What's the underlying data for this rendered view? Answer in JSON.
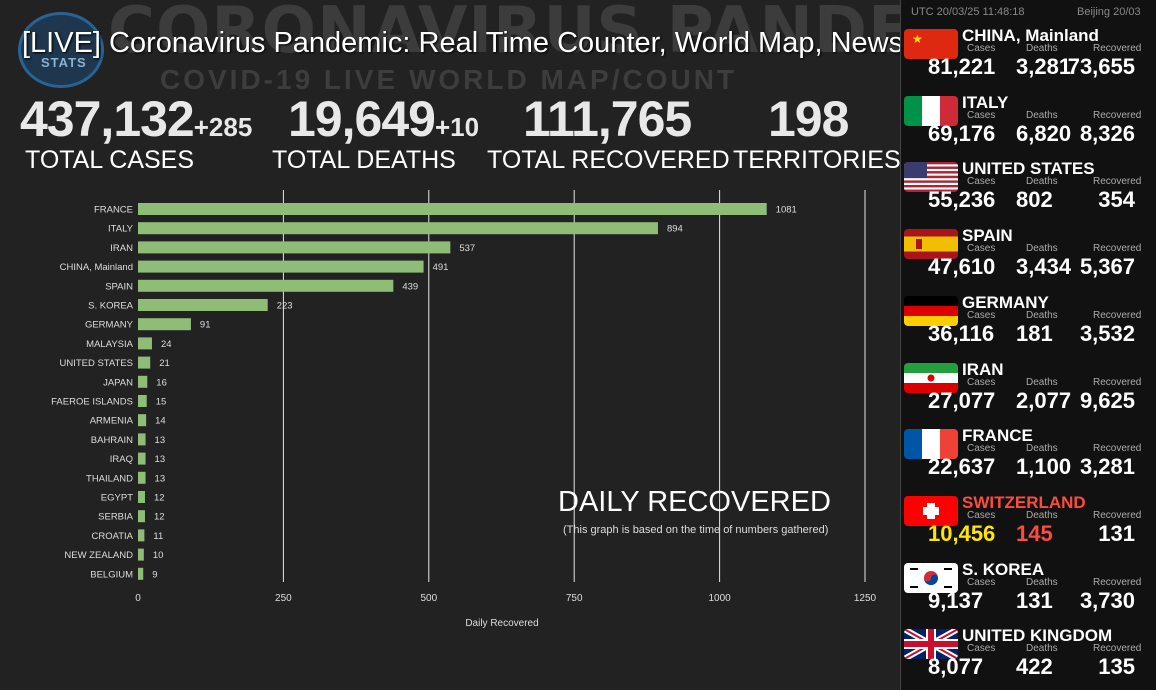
{
  "video_title": "[LIVE] Coronavirus Pandemic: Real Time Counter, World Map, News",
  "background_title": "CORONAVIRUS PANDEMIC",
  "background_subtitle": "COVID-19 LIVE WORLD MAP/COUNT",
  "logo_text": "STATS",
  "stats": {
    "cases": {
      "value": "437,132",
      "delta": "+285",
      "label": "TOTAL CASES"
    },
    "deaths": {
      "value": "19,649",
      "delta": "+10",
      "label": "TOTAL DEATHS"
    },
    "recovered": {
      "value": "111,765",
      "label": "TOTAL RECOVERED"
    },
    "territories": {
      "value": "198",
      "label": "TERRITORIES"
    }
  },
  "daily": {
    "title": "DAILY RECOVERED",
    "note": "(This graph is based on the time of numbers gathered)"
  },
  "chart_data": {
    "type": "bar",
    "orientation": "horizontal",
    "categories": [
      "FRANCE",
      "ITALY",
      "IRAN",
      "CHINA, Mainland",
      "SPAIN",
      "S. KOREA",
      "GERMANY",
      "MALAYSIA",
      "UNITED STATES",
      "JAPAN",
      "FAEROE ISLANDS",
      "ARMENIA",
      "BAHRAIN",
      "IRAQ",
      "THAILAND",
      "EGYPT",
      "SERBIA",
      "CROATIA",
      "NEW ZEALAND",
      "BELGIUM"
    ],
    "values": [
      1081,
      894,
      537,
      491,
      439,
      223,
      91,
      24,
      21,
      16,
      15,
      14,
      13,
      13,
      13,
      12,
      12,
      11,
      10,
      9
    ],
    "xlabel": "Daily Recovered",
    "ylabel": "",
    "xlim": [
      0,
      1250
    ],
    "xticks": [
      0,
      250,
      500,
      750,
      1000,
      1250
    ],
    "grid": true,
    "bar_color": "#8fbd78"
  },
  "panel": {
    "clock_utc": "UTC 20/03/25 11:48:18",
    "clock_beijing": "Beijing 20/03",
    "labels": {
      "cases": "Cases",
      "deaths": "Deaths",
      "recovered": "Recovered"
    },
    "countries": [
      {
        "name": "CHINA, Mainland",
        "flag": "china-flag",
        "cases": "81,221",
        "deaths": "3,281",
        "recovered": "73,655"
      },
      {
        "name": "ITALY",
        "flag": "italy-flag",
        "cases": "69,176",
        "deaths": "6,820",
        "recovered": "8,326"
      },
      {
        "name": "UNITED STATES",
        "flag": "usa-flag",
        "cases": "55,236",
        "deaths": "802",
        "recovered": "354"
      },
      {
        "name": "SPAIN",
        "flag": "spain-flag",
        "cases": "47,610",
        "deaths": "3,434",
        "recovered": "5,367"
      },
      {
        "name": "GERMANY",
        "flag": "germany-flag",
        "cases": "36,116",
        "deaths": "181",
        "recovered": "3,532"
      },
      {
        "name": "IRAN",
        "flag": "iran-flag",
        "cases": "27,077",
        "deaths": "2,077",
        "recovered": "9,625"
      },
      {
        "name": "FRANCE",
        "flag": "france-flag",
        "cases": "22,637",
        "deaths": "1,100",
        "recovered": "3,281"
      },
      {
        "name": "SWITZERLAND",
        "flag": "switzerland-flag",
        "cases": "10,456",
        "deaths": "145",
        "recovered": "131",
        "highlight": true
      },
      {
        "name": "S. KOREA",
        "flag": "south-korea-flag",
        "cases": "9,137",
        "deaths": "131",
        "recovered": "3,730"
      },
      {
        "name": "UNITED KINGDOM",
        "flag": "uk-flag",
        "cases": "8,077",
        "deaths": "422",
        "recovered": "135"
      }
    ]
  }
}
